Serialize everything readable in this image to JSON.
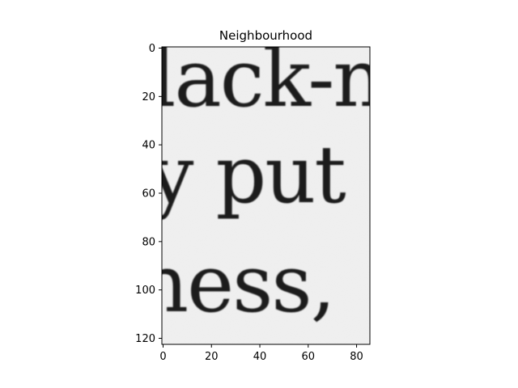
{
  "chart_data": {
    "type": "image",
    "title": "Neighbourhood",
    "xlabel": "",
    "ylabel": "",
    "x_ticks": [
      0,
      20,
      40,
      60,
      80
    ],
    "y_ticks": [
      0,
      20,
      40,
      60,
      80,
      100,
      120
    ],
    "xlim": [
      -0.5,
      85.5
    ],
    "ylim": [
      122.5,
      -0.5
    ],
    "colormap": "gray",
    "grid": false,
    "image_text_lines": [
      "lack-n",
      "y put",
      "ness,"
    ]
  }
}
